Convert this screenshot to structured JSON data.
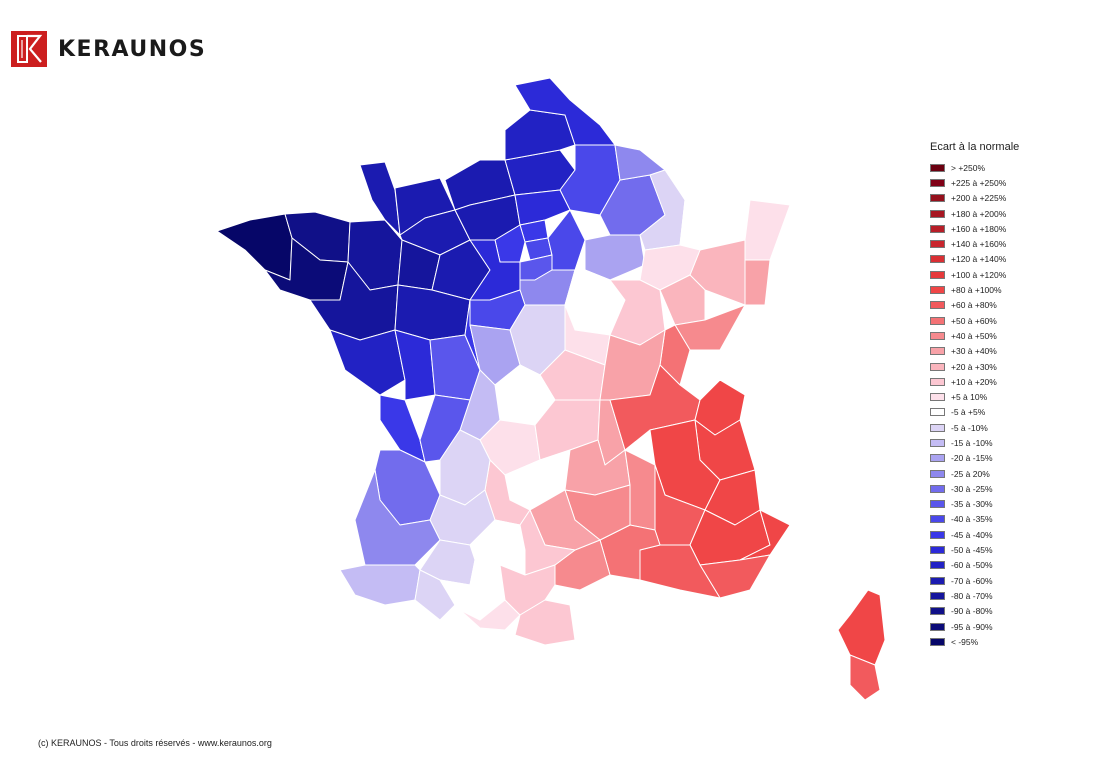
{
  "brand": {
    "name": "KERAUNOS",
    "color": "#cc1f1f"
  },
  "legend": {
    "title": "Ecart à la normale",
    "classes": [
      {
        "label": "> +250%",
        "color": "#6b0010"
      },
      {
        "label": "+225 à +250%",
        "color": "#800016"
      },
      {
        "label": "+200 à +225%",
        "color": "#95101c"
      },
      {
        "label": "+180 à +200%",
        "color": "#a71722"
      },
      {
        "label": "+160 à +180%",
        "color": "#b71e28"
      },
      {
        "label": "+140 à +160%",
        "color": "#c8262e"
      },
      {
        "label": "+120 à +140%",
        "color": "#d92f34"
      },
      {
        "label": "+100 à +120%",
        "color": "#e6393b"
      },
      {
        "label": "+80 à +100%",
        "color": "#f04647"
      },
      {
        "label": "+60 à +80%",
        "color": "#f25a5d"
      },
      {
        "label": "+50 à +60%",
        "color": "#f47275"
      },
      {
        "label": "+40 à +50%",
        "color": "#f68a8e"
      },
      {
        "label": "+30 à +40%",
        "color": "#f8a2a8"
      },
      {
        "label": "+20 à +30%",
        "color": "#fab5bd"
      },
      {
        "label": "+10 à +20%",
        "color": "#fcc7d2"
      },
      {
        "label": "+5 à 10%",
        "color": "#fde0ea"
      },
      {
        "label": "-5 à +5%",
        "color": "#ffffff"
      },
      {
        "label": "-5 à -10%",
        "color": "#dcd4f5"
      },
      {
        "label": "-15 à -10%",
        "color": "#c4bcf4"
      },
      {
        "label": "-20 à -15%",
        "color": "#aaa3f1"
      },
      {
        "label": "-25 à 20%",
        "color": "#8e88ee"
      },
      {
        "label": "-30 à -25%",
        "color": "#726ced"
      },
      {
        "label": "-35 à -30%",
        "color": "#5a56ec"
      },
      {
        "label": "-40 à -35%",
        "color": "#4a48ea"
      },
      {
        "label": "-45 à -40%",
        "color": "#3a38e8"
      },
      {
        "label": "-50 à -45%",
        "color": "#2c2ad8"
      },
      {
        "label": "-60 à -50%",
        "color": "#2222c4"
      },
      {
        "label": "-70 à -60%",
        "color": "#1b1bb0"
      },
      {
        "label": "-80 à -70%",
        "color": "#15159c"
      },
      {
        "label": "-90 à -80%",
        "color": "#101088"
      },
      {
        "label": "-95 à -90%",
        "color": "#0b0b78"
      },
      {
        "label": "< -95%",
        "color": "#060668"
      }
    ]
  },
  "footer": "(c) KERAUNOS - Tous droits réservés - www.keraunos.org"
}
